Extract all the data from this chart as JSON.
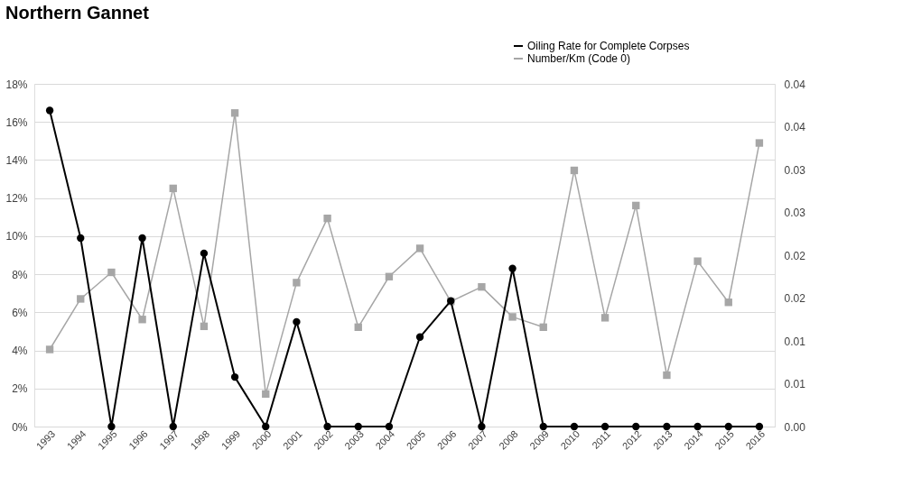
{
  "chart_data": {
    "type": "line",
    "title": "Northern Gannet",
    "categories": [
      "1993",
      "1994",
      "1995",
      "1996",
      "1997",
      "1998",
      "1999",
      "2000",
      "2001",
      "2002",
      "2003",
      "2004",
      "2005",
      "2006",
      "2007",
      "2008",
      "2009",
      "2010",
      "2011",
      "2012",
      "2013",
      "2014",
      "2015",
      "2016"
    ],
    "series": [
      {
        "name": "Oiling Rate for Complete Corpses",
        "color": "#000000",
        "marker": "circle",
        "values": [
          16.6,
          9.9,
          0,
          9.9,
          0,
          9.1,
          2.6,
          0,
          5.5,
          0,
          0,
          0,
          4.7,
          6.6,
          0,
          8.3,
          0,
          0,
          0,
          0,
          0,
          0,
          0,
          0
        ]
      },
      {
        "name": "Number/Km (Code 0)",
        "color": "#a6a6a6",
        "marker": "square",
        "axis": "y2",
        "values": [
          0.009,
          0.0149,
          0.018,
          0.0125,
          0.0278,
          0.0117,
          0.0366,
          0.0038,
          0.0168,
          0.0243,
          0.0116,
          0.0175,
          0.0208,
          0.0146,
          0.0163,
          0.0128,
          0.0116,
          0.0299,
          0.0127,
          0.0258,
          0.006,
          0.0193,
          0.0145,
          0.0331
        ]
      }
    ],
    "ylim": [
      0,
      18
    ],
    "yticks": [
      {
        "value": 0,
        "label": "0%"
      },
      {
        "value": 2,
        "label": "2%"
      },
      {
        "value": 4,
        "label": "4%"
      },
      {
        "value": 6,
        "label": "6%"
      },
      {
        "value": 8,
        "label": "8%"
      },
      {
        "value": 10,
        "label": "10%"
      },
      {
        "value": 12,
        "label": "12%"
      },
      {
        "value": 14,
        "label": "14%"
      },
      {
        "value": 16,
        "label": "16%"
      },
      {
        "value": 18,
        "label": "18%"
      }
    ],
    "y2lim": [
      0,
      0.04
    ],
    "y2ticks": [
      {
        "value": 0,
        "label": "0.00"
      },
      {
        "value": 0.005,
        "label": "0.01"
      },
      {
        "value": 0.01,
        "label": "0.01"
      },
      {
        "value": 0.015,
        "label": "0.02"
      },
      {
        "value": 0.02,
        "label": "0.02"
      },
      {
        "value": 0.025,
        "label": "0.03"
      },
      {
        "value": 0.03,
        "label": "0.03"
      },
      {
        "value": 0.035,
        "label": "0.04"
      },
      {
        "value": 0.04,
        "label": "0.04"
      }
    ],
    "grid": "y",
    "legend": "top right",
    "line_style": "solid"
  }
}
